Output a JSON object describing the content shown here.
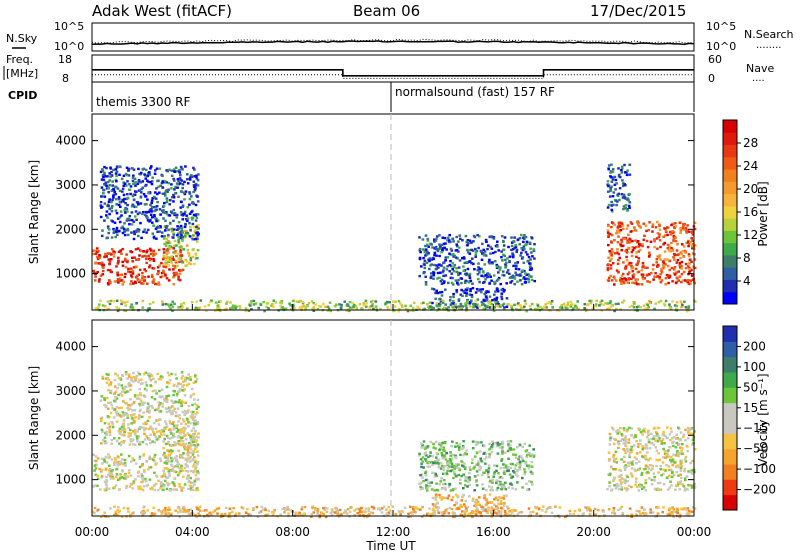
{
  "header": {
    "station": "Adak West (fitACF)",
    "beam": "Beam 06",
    "date": "17/Dec/2015"
  },
  "labels": {
    "nsky": "N.Sky",
    "nsearch": "N.Search",
    "nsearch_key": "........",
    "freq_line1": "Freq.",
    "freq_line2": "[MHz]",
    "nave": "Nave",
    "nave_key": "....",
    "cpid": "CPID",
    "ylabel": "Slant Range [km]",
    "xlabel": "Time UT"
  },
  "chart_data": [
    {
      "type": "line",
      "name": "noise_panel",
      "left_axis": [
        "10^5",
        "10^0"
      ],
      "right_axis": [
        "10^5",
        "10^0"
      ],
      "series": [
        {
          "name": "N.Sky",
          "style": "solid"
        },
        {
          "name": "N.Search",
          "style": "dotted"
        }
      ]
    },
    {
      "type": "line",
      "name": "freq_panel",
      "left_ticks": [
        "18",
        "8"
      ],
      "right_ticks": [
        "60",
        "0"
      ],
      "freq_steps": [
        {
          "t0": 0,
          "t1": 10,
          "freq": 12.5
        },
        {
          "t0": 10,
          "t1": 18,
          "freq": 10.3
        },
        {
          "t0": 18,
          "t1": 24,
          "freq": 12.5
        }
      ],
      "nave_steps": [
        {
          "t0": 0,
          "t1": 10,
          "nave": 16
        },
        {
          "t0": 10,
          "t1": 18,
          "nave": 8
        },
        {
          "t0": 18,
          "t1": 24,
          "nave": 16
        }
      ]
    },
    {
      "type": "table",
      "name": "cpid_panel",
      "segments": [
        {
          "label": "themis 3300 RF",
          "t0": 0,
          "t1": 12
        },
        {
          "label": "normalsound (fast) 157 RF",
          "t0": 12,
          "t1": 24
        }
      ]
    },
    {
      "type": "heatmap",
      "name": "power",
      "xlim": [
        0,
        24
      ],
      "ylim": [
        180,
        4600
      ],
      "x_ticks": [
        "00:00",
        "04:00",
        "08:00",
        "12:00",
        "16:00",
        "20:00",
        "00:00"
      ],
      "y_ticks": [
        1000,
        2000,
        3000,
        4000
      ],
      "colorbar_label": "Power [dB]",
      "colorbar_ticks": [
        "28",
        "24",
        "20",
        "16",
        "12",
        "8",
        "4"
      ],
      "colorbar_colors": [
        "#0000ff",
        "#1f2fb0",
        "#2e5ea6",
        "#3b7f6a",
        "#3faa4a",
        "#6cc63a",
        "#b8d23a",
        "#f0d23c",
        "#f7b43a",
        "#f59a2e",
        "#f2801e",
        "#ef5a14",
        "#e83a10",
        "#e01a0a",
        "#d80000"
      ],
      "regions": [
        {
          "t": [
            0.0,
            3.6
          ],
          "r": [
            780,
            1600
          ],
          "level": 0.85
        },
        {
          "t": [
            2.8,
            4.2
          ],
          "r": [
            1200,
            2150
          ],
          "level": 0.45
        },
        {
          "t": [
            0.3,
            4.2
          ],
          "r": [
            1800,
            3450
          ],
          "level": 0.12
        },
        {
          "t": [
            13.0,
            17.6
          ],
          "r": [
            780,
            1900
          ],
          "level": 0.15
        },
        {
          "t": [
            13.5,
            16.5
          ],
          "r": [
            250,
            700
          ],
          "level": 0.1
        },
        {
          "t": [
            20.5,
            24.0
          ],
          "r": [
            780,
            2200
          ],
          "level": 0.8
        },
        {
          "t": [
            20.5,
            21.4
          ],
          "r": [
            2400,
            3500
          ],
          "level": 0.15
        },
        {
          "t": [
            0.0,
            24.0
          ],
          "r": [
            180,
            420
          ],
          "level": 0.4
        }
      ]
    },
    {
      "type": "heatmap",
      "name": "velocity",
      "xlim": [
        0,
        24
      ],
      "ylim": [
        180,
        4600
      ],
      "x_ticks": [
        "00:00",
        "04:00",
        "08:00",
        "12:00",
        "16:00",
        "20:00",
        "00:00"
      ],
      "y_ticks": [
        1000,
        2000,
        3000,
        4000
      ],
      "colorbar_label": "Velocity [m s⁻¹]",
      "colorbar_ticks": [
        "200",
        "100",
        "50",
        "15",
        "−15",
        "−50",
        "−100",
        "−200"
      ],
      "colorbar_colors": [
        "#d80000",
        "#ee3a10",
        "#f2801e",
        "#f5a52e",
        "#f7c242",
        "#c8c8c0",
        "#c8c8c0",
        "#6cc63a",
        "#3faa4a",
        "#3b7f6a",
        "#2e5ea6",
        "#1f2fb0"
      ],
      "regions": [
        {
          "t": [
            0.0,
            4.2
          ],
          "r": [
            780,
            1600
          ],
          "level": 0.48
        },
        {
          "t": [
            2.8,
            4.2
          ],
          "r": [
            1200,
            2150
          ],
          "level": 0.48
        },
        {
          "t": [
            0.3,
            4.2
          ],
          "r": [
            1800,
            3450
          ],
          "level": 0.48
        },
        {
          "t": [
            13.0,
            17.6
          ],
          "r": [
            780,
            1900
          ],
          "level": 0.6
        },
        {
          "t": [
            13.5,
            16.5
          ],
          "r": [
            250,
            700
          ],
          "level": 0.35
        },
        {
          "t": [
            20.5,
            24.0
          ],
          "r": [
            780,
            2200
          ],
          "level": 0.48
        },
        {
          "t": [
            0.0,
            24.0
          ],
          "r": [
            180,
            420
          ],
          "level": 0.35
        }
      ]
    }
  ]
}
